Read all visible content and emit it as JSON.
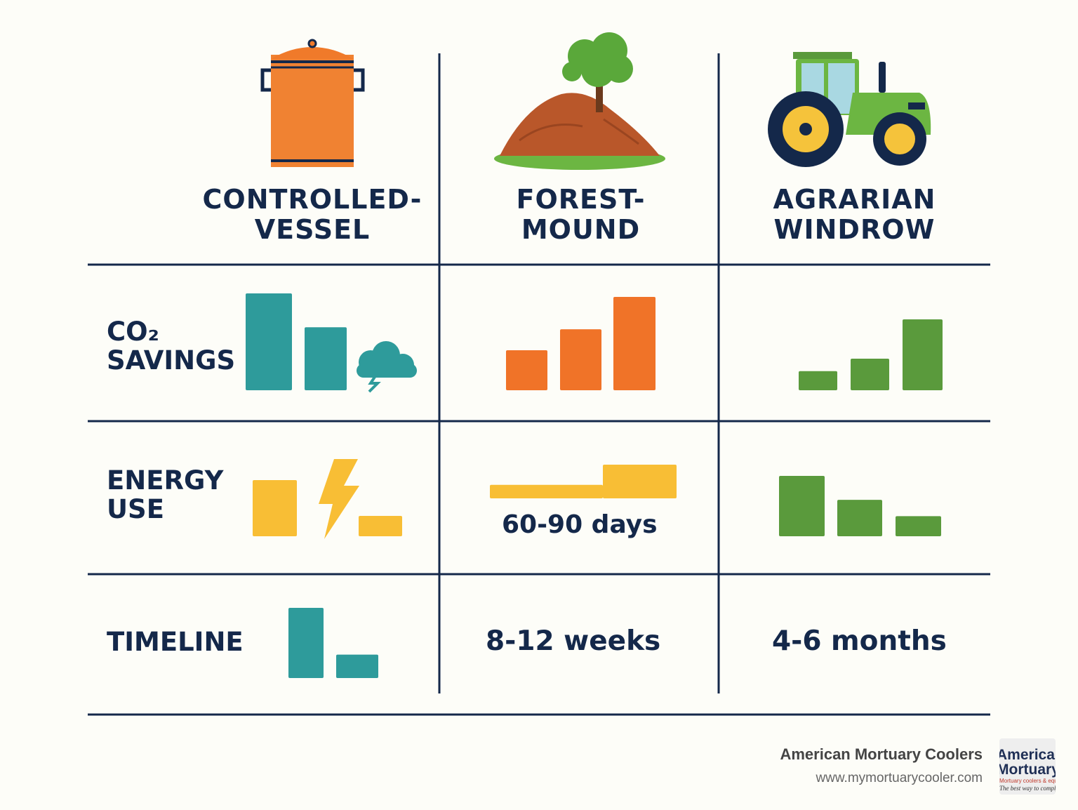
{
  "colors": {
    "ink": "#14284a",
    "teal": "#2e9b9b",
    "orange": "#f07328",
    "green": "#5a9a3c",
    "yellow": "#f8be35",
    "background": "#fdfdf8"
  },
  "columns": [
    {
      "line1": "CONTROLLED-",
      "line2": "VESSEL",
      "icon": "compost-bin-icon"
    },
    {
      "line1": "FOREST-",
      "line2": "MOUND",
      "icon": "soil-mound-tree-icon"
    },
    {
      "line1": "AGRARIAN",
      "line2": "WINDROW",
      "icon": "tractor-icon"
    }
  ],
  "rows": [
    {
      "line1": "CO₂",
      "line2": "SAVINGS"
    },
    {
      "line1": "ENERGY",
      "line2": "USE"
    },
    {
      "line1": "TIMELINE",
      "line2": ""
    }
  ],
  "cell_text": {
    "forest_energy": "60-90 days",
    "forest_timeline": "8-12 weeks",
    "agrarian_timeline": "4-6 months"
  },
  "cell_icons": {
    "vessel_co2": "storm-cloud-icon",
    "vessel_energy": "lightning-bolt-icon"
  },
  "chart_data": {
    "type": "bar",
    "charts": [
      {
        "row": "CO2 SAVINGS",
        "column": "CONTROLLED-VESSEL",
        "color": "teal",
        "values": [
          100,
          65
        ]
      },
      {
        "row": "CO2 SAVINGS",
        "column": "FOREST-MOUND",
        "color": "orange",
        "values": [
          42,
          64,
          98
        ]
      },
      {
        "row": "CO2 SAVINGS",
        "column": "AGRARIAN WINDROW",
        "color": "green",
        "values": [
          20,
          33,
          74
        ]
      },
      {
        "row": "ENERGY USE",
        "column": "CONTROLLED-VESSEL",
        "color": "yellow",
        "values": [
          58,
          21
        ]
      },
      {
        "row": "ENERGY USE",
        "column": "FOREST-MOUND",
        "color": "yellow",
        "values": [
          14,
          35
        ],
        "style": "step"
      },
      {
        "row": "ENERGY USE",
        "column": "AGRARIAN WINDROW",
        "color": "green",
        "values": [
          63,
          38,
          21
        ]
      },
      {
        "row": "TIMELINE",
        "column": "CONTROLLED-VESSEL",
        "color": "teal",
        "values": [
          72,
          24
        ]
      }
    ]
  },
  "footer": {
    "company": "American Mortuary Coolers",
    "url": "www.mymortuarycooler.com",
    "logo_line1": "American",
    "logo_line2": "Mortuary",
    "logo_line3": "Mortuary coolers & equipment",
    "logo_line4": "The best way to comply"
  }
}
